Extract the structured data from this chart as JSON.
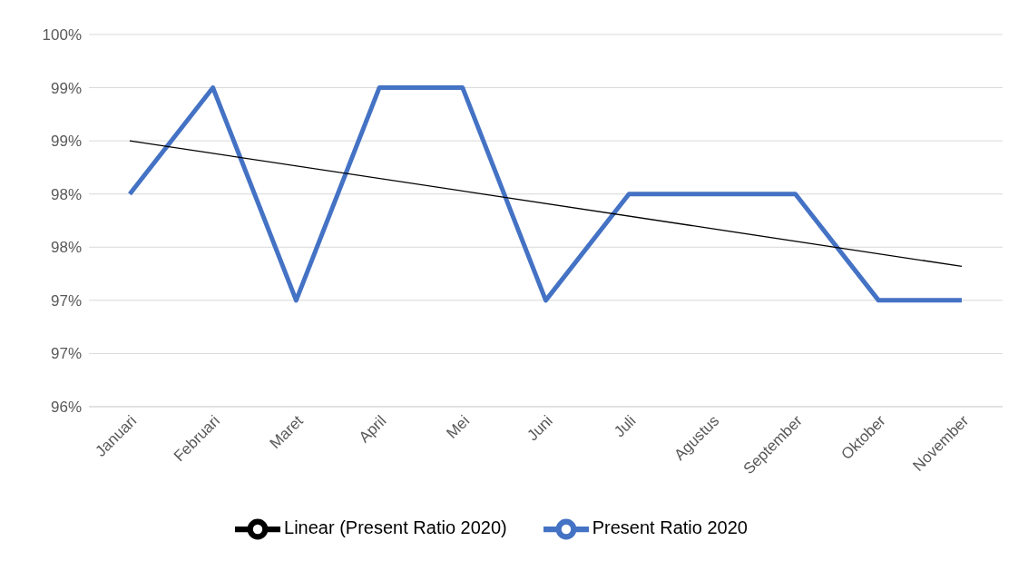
{
  "chart_data": {
    "type": "line",
    "categories": [
      "Januari",
      "Februari",
      "Maret",
      "April",
      "Mei",
      "Juni",
      "Juli",
      "Agustus",
      "September",
      "Oktober",
      "November"
    ],
    "series": [
      {
        "name": "Present Ratio 2020",
        "color": "#4472c4",
        "values": [
          98,
          99,
          97,
          99,
          99,
          97,
          98,
          98,
          98,
          97,
          97
        ]
      },
      {
        "name": "Linear (Present Ratio 2020)",
        "type": "line",
        "color": "#000000",
        "x": [
          "Januari",
          "November"
        ],
        "values": [
          98.5,
          97.32
        ]
      }
    ],
    "ylim": [
      96,
      99.5
    ],
    "yticks": [
      {
        "value": 96,
        "label": "96%"
      },
      {
        "value": 96.5,
        "label": "97%"
      },
      {
        "value": 97,
        "label": "97%"
      },
      {
        "value": 97.5,
        "label": "98%"
      },
      {
        "value": 98,
        "label": "98%"
      },
      {
        "value": 98.5,
        "label": "99%"
      },
      {
        "value": 99,
        "label": "99%"
      },
      {
        "value": 99.5,
        "label": "100%"
      }
    ],
    "grid": "y",
    "legend": "bottom",
    "marker": "none"
  }
}
